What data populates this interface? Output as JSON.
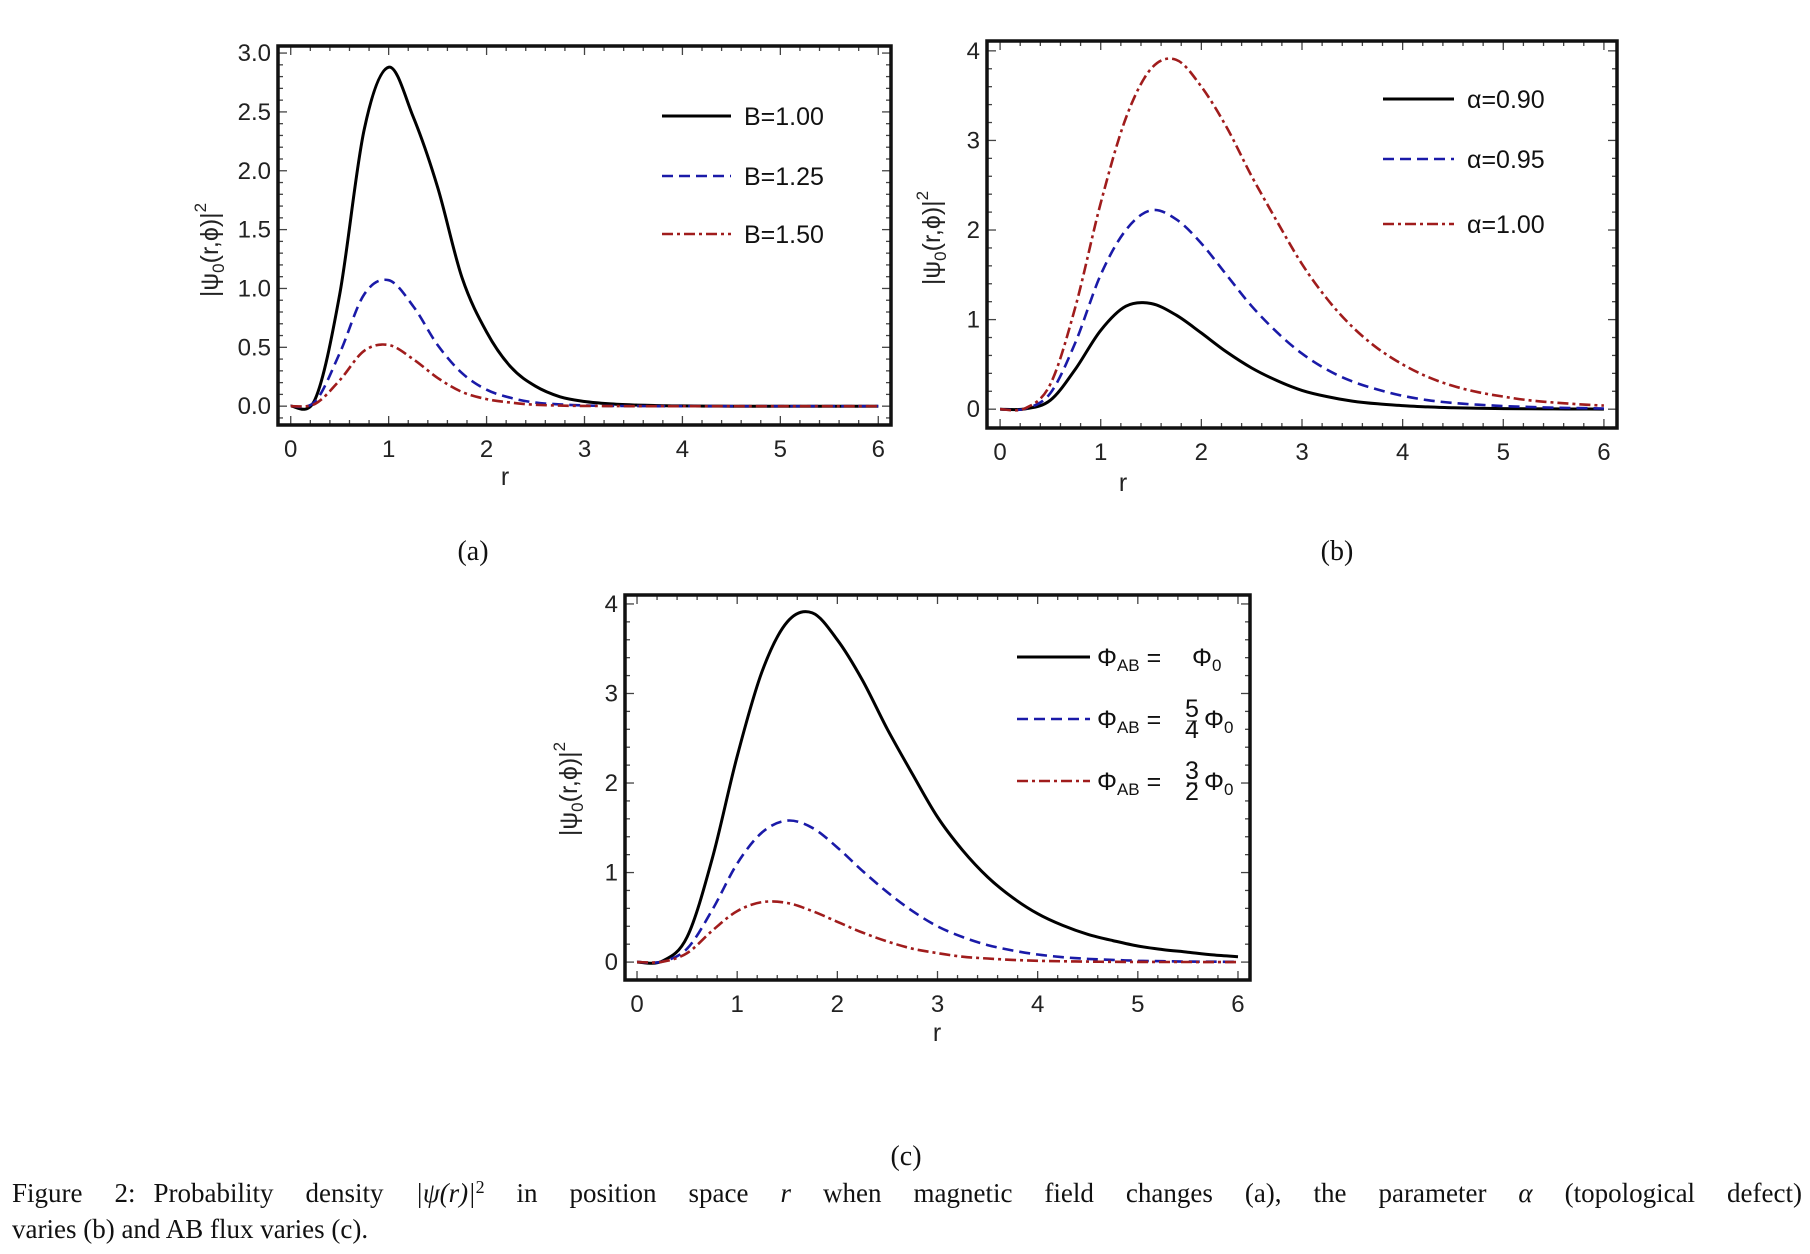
{
  "chart_data": [
    {
      "type": "line",
      "sublabel": "(a)",
      "xlabel": "r",
      "ylabel": {
        "pre": "|ψ",
        "sub": "0",
        "post": "(r,ϕ)|",
        "sup": "2"
      },
      "xlim": [
        -0.13,
        6.13
      ],
      "ylim": [
        -0.16,
        3.06
      ],
      "xticks": [
        "0",
        "1",
        "2",
        "3",
        "4",
        "5",
        "6"
      ],
      "yticks": [
        "0.0",
        "0.5",
        "1.0",
        "1.5",
        "2.0",
        "2.5",
        "3.0"
      ],
      "ytick_values": [
        0,
        0.5,
        1,
        1.5,
        2,
        2.5,
        3
      ],
      "x_minor_step": 0.2,
      "y_minor_step": 0.1,
      "legend_position": "top-right",
      "x": [
        0,
        0.25,
        0.5,
        0.75,
        1,
        1.25,
        1.5,
        1.75,
        2,
        2.25,
        2.5,
        2.75,
        3,
        3.25,
        3.5,
        3.75,
        4,
        4.25,
        4.5,
        4.75,
        5,
        5.25,
        5.5,
        5.75,
        6
      ],
      "series": [
        {
          "name": "B=1.00",
          "style": "solid",
          "color": "#000000",
          "values": [
            0,
            0.06,
            0.95,
            2.35,
            2.88,
            2.46,
            1.86,
            1.09,
            0.63,
            0.33,
            0.17,
            0.08,
            0.04,
            0.02,
            0.01,
            0.005,
            0.002,
            0.001,
            0,
            0,
            0,
            0,
            0,
            0,
            0
          ]
        },
        {
          "name": "B=1.25",
          "style": "dashed",
          "color": "#1a1aa8",
          "values": [
            0,
            0.04,
            0.45,
            0.95,
            1.07,
            0.85,
            0.52,
            0.28,
            0.14,
            0.07,
            0.03,
            0.015,
            0.006,
            0.002,
            0.001,
            0,
            0,
            0,
            0,
            0,
            0,
            0,
            0,
            0,
            0
          ]
        },
        {
          "name": "B=1.50",
          "style": "dashdot",
          "color": "#a01c1c",
          "values": [
            0,
            0.02,
            0.22,
            0.47,
            0.52,
            0.4,
            0.24,
            0.12,
            0.06,
            0.03,
            0.012,
            0.005,
            0.002,
            0.001,
            0,
            0,
            0,
            0,
            0,
            0,
            0,
            0,
            0,
            0,
            0
          ]
        }
      ]
    },
    {
      "type": "line",
      "sublabel": "(b)",
      "xlabel": "r",
      "ylabel": {
        "pre": "|ψ",
        "sub": "0",
        "post": "(r,ϕ)|",
        "sup": "2"
      },
      "xlim": [
        -0.13,
        6.13
      ],
      "ylim": [
        -0.21,
        4.11
      ],
      "xticks": [
        "0",
        "1",
        "2",
        "3",
        "4",
        "5",
        "6"
      ],
      "yticks": [
        "0",
        "1",
        "2",
        "3",
        "4"
      ],
      "ytick_values": [
        0,
        1,
        2,
        3,
        4
      ],
      "x_minor_step": 0.2,
      "y_minor_step": 0.2,
      "legend_position": "top-right",
      "x": [
        0,
        0.25,
        0.5,
        0.75,
        1,
        1.25,
        1.5,
        1.75,
        2,
        2.25,
        2.5,
        2.75,
        3,
        3.25,
        3.5,
        3.75,
        4,
        4.25,
        4.5,
        4.75,
        5,
        5.25,
        5.5,
        5.75,
        6
      ],
      "series": [
        {
          "name": "α=0.90",
          "style": "solid",
          "color": "#000000",
          "values": [
            0,
            0.003,
            0.1,
            0.45,
            0.88,
            1.15,
            1.18,
            1.05,
            0.85,
            0.64,
            0.46,
            0.32,
            0.21,
            0.14,
            0.09,
            0.06,
            0.04,
            0.025,
            0.016,
            0.01,
            0.007,
            0.004,
            0.003,
            0.002,
            0.001
          ]
        },
        {
          "name": "α=0.95",
          "style": "dashed",
          "color": "#1a1aa8",
          "values": [
            0,
            0.005,
            0.18,
            0.75,
            1.5,
            2.0,
            2.22,
            2.12,
            1.85,
            1.5,
            1.15,
            0.86,
            0.62,
            0.44,
            0.31,
            0.22,
            0.15,
            0.1,
            0.07,
            0.05,
            0.035,
            0.025,
            0.017,
            0.012,
            0.008
          ]
        },
        {
          "name": "α=1.00",
          "style": "dashdot",
          "color": "#a01c1c",
          "values": [
            0,
            0.01,
            0.28,
            1.15,
            2.3,
            3.25,
            3.8,
            3.9,
            3.6,
            3.15,
            2.6,
            2.1,
            1.62,
            1.23,
            0.92,
            0.68,
            0.5,
            0.36,
            0.26,
            0.19,
            0.14,
            0.1,
            0.075,
            0.055,
            0.04
          ]
        }
      ]
    },
    {
      "type": "line",
      "sublabel": "(c)",
      "xlabel": "r",
      "ylabel": {
        "pre": "|ψ",
        "sub": "0",
        "post": "(r,ϕ)|",
        "sup": "2"
      },
      "xlim": [
        -0.12,
        6.12
      ],
      "ylim": [
        -0.2,
        4.1
      ],
      "xticks": [
        "0",
        "1",
        "2",
        "3",
        "4",
        "5",
        "6"
      ],
      "yticks": [
        "0",
        "1",
        "2",
        "3",
        "4"
      ],
      "ytick_values": [
        0,
        1,
        2,
        3,
        4
      ],
      "x_minor_step": 0.2,
      "y_minor_step": 0.2,
      "legend_position": "top-right",
      "x": [
        0,
        0.25,
        0.5,
        0.75,
        1,
        1.25,
        1.5,
        1.75,
        2,
        2.25,
        2.5,
        2.75,
        3,
        3.25,
        3.5,
        3.75,
        4,
        4.25,
        4.5,
        4.75,
        5,
        5.25,
        5.5,
        5.75,
        6
      ],
      "series": [
        {
          "name": "ΦAB = Φ0",
          "label": {
            "sym": "Φ",
            "sub": "AB",
            "eq": " = ",
            "num": "",
            "den": "",
            "tail": "Φ",
            "tail_sub": "0"
          },
          "style": "solid",
          "color": "#000000",
          "values": [
            0,
            0.01,
            0.28,
            1.15,
            2.3,
            3.25,
            3.8,
            3.9,
            3.6,
            3.15,
            2.6,
            2.1,
            1.62,
            1.25,
            0.95,
            0.72,
            0.54,
            0.41,
            0.31,
            0.24,
            0.18,
            0.14,
            0.11,
            0.08,
            0.06
          ]
        },
        {
          "name": "ΦAB = 5/4 Φ0",
          "label": {
            "sym": "Φ",
            "sub": "AB",
            "eq": " = ",
            "num": "5",
            "den": "4",
            "tail": "Φ",
            "tail_sub": "0"
          },
          "style": "dashed",
          "color": "#1a1aa8",
          "values": [
            0,
            0.005,
            0.15,
            0.58,
            1.1,
            1.45,
            1.58,
            1.5,
            1.28,
            1.02,
            0.78,
            0.57,
            0.4,
            0.28,
            0.19,
            0.13,
            0.085,
            0.055,
            0.036,
            0.024,
            0.015,
            0.01,
            0.006,
            0.004,
            0.003
          ]
        },
        {
          "name": "ΦAB = 3/2 Φ0",
          "label": {
            "sym": "Φ",
            "sub": "AB",
            "eq": " = ",
            "num": "3",
            "den": "2",
            "tail": "Φ",
            "tail_sub": "0"
          },
          "style": "dashdot",
          "color": "#a01c1c",
          "values": [
            0,
            0.003,
            0.1,
            0.35,
            0.57,
            0.67,
            0.66,
            0.57,
            0.45,
            0.33,
            0.23,
            0.15,
            0.1,
            0.06,
            0.04,
            0.024,
            0.015,
            0.009,
            0.005,
            0.003,
            0.002,
            0.001,
            0.001,
            0,
            0
          ]
        }
      ]
    }
  ],
  "caption": {
    "label": "Figure 2:",
    "t1": "Probability density ",
    "math": "|ψ(r)|",
    "sup": "2",
    "t2": " in position space ",
    "var_r": "r",
    "t3": " when magnetic field changes (a), the parameter ",
    "var_alpha": "α",
    "t4": " (topological defect)",
    "t5": "varies (b) and AB flux varies (c)."
  }
}
